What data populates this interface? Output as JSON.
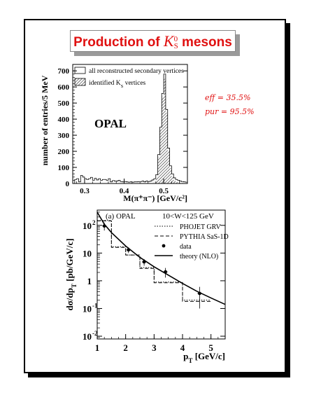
{
  "title": {
    "prefix": "Production of ",
    "symbol": "K",
    "sup": "0",
    "sub": "S",
    "suffix": " mesons"
  },
  "annotations": {
    "eff": "eff = 35.5%",
    "pur": "pur = 95.5%"
  },
  "colors": {
    "title": "#e01010",
    "hatch": "#333333"
  },
  "chart_data": [
    {
      "type": "histogram",
      "watermark": "OPAL",
      "xlabel": "M(π⁺π⁻) [GeV/c²]",
      "ylabel": "number of entries/5 MeV",
      "xlim": [
        0.27,
        0.56
      ],
      "ylim": [
        0,
        740
      ],
      "x_ticks": [
        {
          "v": 0.3,
          "label": "0.3"
        },
        {
          "v": 0.4,
          "label": "0.4"
        },
        {
          "v": 0.5,
          "label": "0.5"
        }
      ],
      "y_ticks": [
        {
          "v": 0,
          "label": "0"
        },
        {
          "v": 100,
          "label": "100"
        },
        {
          "v": 200,
          "label": "200"
        },
        {
          "v": 300,
          "label": "300"
        },
        {
          "v": 400,
          "label": "400"
        },
        {
          "v": 500,
          "label": "500"
        },
        {
          "v": 600,
          "label": "600"
        },
        {
          "v": 700,
          "label": "700"
        }
      ],
      "legend_position": "top-right",
      "bin_width": 0.005,
      "series": [
        {
          "name": "all reconstructed secondary vertices",
          "style": "open",
          "bins": [
            [
              0.275,
              25
            ],
            [
              0.28,
              30
            ],
            [
              0.285,
              10
            ],
            [
              0.29,
              50
            ],
            [
              0.295,
              40
            ],
            [
              0.3,
              30
            ],
            [
              0.305,
              25
            ],
            [
              0.31,
              30
            ],
            [
              0.315,
              38
            ],
            [
              0.32,
              20
            ],
            [
              0.325,
              32
            ],
            [
              0.33,
              22
            ],
            [
              0.335,
              30
            ],
            [
              0.34,
              20
            ],
            [
              0.345,
              25
            ],
            [
              0.35,
              25
            ],
            [
              0.355,
              20
            ],
            [
              0.36,
              30
            ],
            [
              0.365,
              10
            ],
            [
              0.37,
              18
            ],
            [
              0.375,
              15
            ],
            [
              0.38,
              15
            ],
            [
              0.385,
              20
            ],
            [
              0.39,
              12
            ],
            [
              0.395,
              10
            ],
            [
              0.4,
              12
            ],
            [
              0.405,
              10
            ],
            [
              0.41,
              8
            ],
            [
              0.415,
              10
            ],
            [
              0.42,
              8
            ],
            [
              0.425,
              10
            ],
            [
              0.43,
              10
            ],
            [
              0.435,
              12
            ],
            [
              0.44,
              12
            ],
            [
              0.445,
              15
            ],
            [
              0.45,
              10
            ],
            [
              0.455,
              15
            ],
            [
              0.46,
              12
            ],
            [
              0.465,
              15
            ],
            [
              0.47,
              22
            ],
            [
              0.475,
              30
            ],
            [
              0.48,
              55
            ],
            [
              0.485,
              180
            ],
            [
              0.49,
              350
            ],
            [
              0.495,
              560
            ],
            [
              0.5,
              680
            ],
            [
              0.505,
              460
            ],
            [
              0.51,
              220
            ],
            [
              0.515,
              110
            ],
            [
              0.52,
              60
            ],
            [
              0.525,
              35
            ],
            [
              0.53,
              25
            ],
            [
              0.535,
              20
            ],
            [
              0.54,
              15
            ],
            [
              0.545,
              12
            ],
            [
              0.55,
              10
            ],
            [
              0.555,
              8
            ]
          ]
        },
        {
          "name": "identified K_S vertices",
          "style": "hatched",
          "bins": [
            [
              0.475,
              10
            ],
            [
              0.48,
              40
            ],
            [
              0.485,
              165
            ],
            [
              0.49,
              335
            ],
            [
              0.495,
              540
            ],
            [
              0.5,
              650
            ],
            [
              0.505,
              440
            ],
            [
              0.51,
              205
            ],
            [
              0.515,
              95
            ],
            [
              0.52,
              45
            ],
            [
              0.525,
              22
            ],
            [
              0.53,
              12
            ],
            [
              0.535,
              8
            ],
            [
              0.54,
              5
            ],
            [
              0.545,
              3
            ]
          ]
        }
      ]
    },
    {
      "type": "line",
      "scale": "log-y",
      "xlabel": "p_T [GeV/c]",
      "ylabel": "dσ/dp_T [pb/GeV/c]",
      "header_left": "(a) OPAL",
      "header_right": "10<W<125 GeV",
      "xlim": [
        1.0,
        5.5
      ],
      "ylim_log10": [
        -2.1,
        2.55
      ],
      "x_ticks": [
        {
          "v": 1,
          "label": "1"
        },
        {
          "v": 2,
          "label": "2"
        },
        {
          "v": 3,
          "label": "3"
        },
        {
          "v": 4,
          "label": "4"
        },
        {
          "v": 5,
          "label": "5"
        }
      ],
      "y_ticks": [
        {
          "e": 2,
          "label": "10",
          "exp": "2"
        },
        {
          "e": 1,
          "label": "10",
          "exp": ""
        },
        {
          "e": 0,
          "label": "1",
          "exp": ""
        },
        {
          "e": -1,
          "label": "10",
          "exp": "-1"
        },
        {
          "e": -2,
          "label": "10",
          "exp": "-2"
        }
      ],
      "legend_position": "top-right",
      "series": [
        {
          "name": "PHOJET GRV",
          "style": "dotted",
          "steps": [
            [
              1.0,
              1.5,
              150
            ],
            [
              1.5,
              2.0,
              17
            ],
            [
              2.0,
              2.5,
              8.5
            ],
            [
              2.5,
              3.0,
              3.0
            ],
            [
              3.0,
              4.0,
              0.9
            ],
            [
              4.0,
              5.0,
              0.2
            ]
          ]
        },
        {
          "name": "PYTHIA SaS-1D",
          "style": "dashed",
          "steps": [
            [
              1.0,
              1.5,
              145
            ],
            [
              1.5,
              2.0,
              16
            ],
            [
              2.0,
              2.5,
              8.5
            ],
            [
              2.5,
              3.0,
              2.8
            ],
            [
              3.0,
              4.0,
              0.85
            ],
            [
              4.0,
              5.0,
              0.18
            ]
          ]
        },
        {
          "name": "data",
          "style": "points",
          "points": [
            {
              "x": 1.25,
              "y": 95,
              "err": 30
            },
            {
              "x": 2.1,
              "y": 13,
              "err": 3
            },
            {
              "x": 2.65,
              "y": 4.8,
              "err": 1.3
            },
            {
              "x": 3.4,
              "y": 2.1,
              "err": 0.8
            },
            {
              "x": 4.6,
              "y": 0.35,
              "err": 0.25
            }
          ]
        },
        {
          "name": "theory (NLO)",
          "style": "solid",
          "points": [
            [
              1.0,
              300
            ],
            [
              1.25,
              110
            ],
            [
              1.5,
              55
            ],
            [
              2.0,
              18
            ],
            [
              2.5,
              7
            ],
            [
              3.0,
              3.2
            ],
            [
              3.5,
              1.6
            ],
            [
              4.0,
              0.8
            ],
            [
              4.5,
              0.42
            ],
            [
              5.0,
              0.24
            ],
            [
              5.5,
              0.14
            ]
          ]
        }
      ]
    }
  ]
}
